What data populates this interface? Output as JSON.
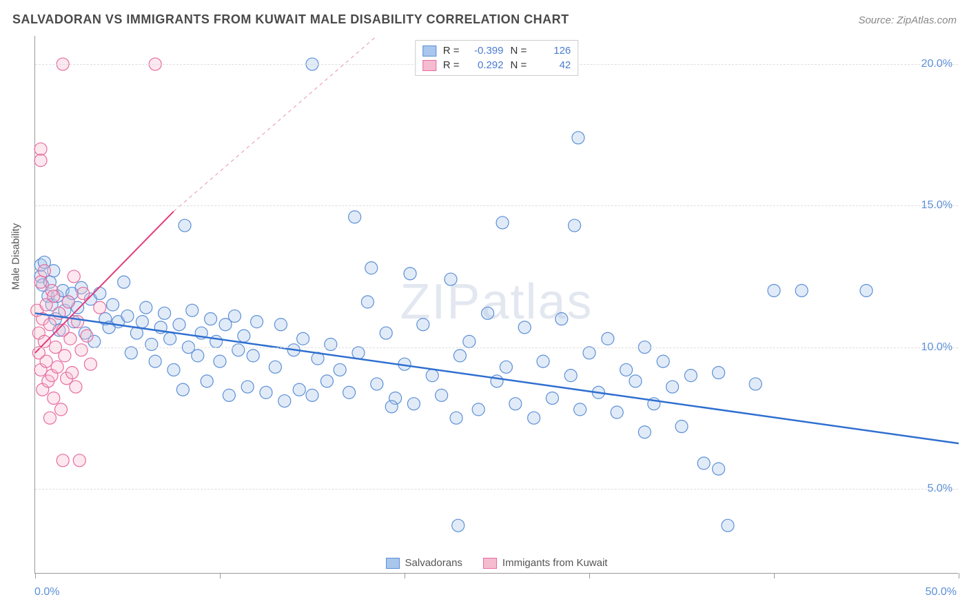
{
  "title": "SALVADORAN VS IMMIGRANTS FROM KUWAIT MALE DISABILITY CORRELATION CHART",
  "source": "Source: ZipAtlas.com",
  "watermark": "ZIPatlas",
  "y_axis_label": "Male Disability",
  "chart": {
    "type": "scatter",
    "xlim": [
      0,
      50
    ],
    "ylim": [
      2,
      21
    ],
    "xticks": [
      0,
      10,
      20,
      30,
      40,
      50
    ],
    "yticks": [
      5,
      10,
      15,
      20
    ],
    "ytick_labels": [
      "5.0%",
      "10.0%",
      "15.0%",
      "20.0%"
    ],
    "xmin_label": "0.0%",
    "xmax_label": "50.0%",
    "background_color": "#ffffff",
    "grid_color": "#dddddd",
    "point_radius": 9,
    "point_opacity": 0.35
  },
  "series": [
    {
      "name": "Salvadorans",
      "color_fill": "#a9c6ec",
      "color_stroke": "#5b8fd6",
      "R": "-0.399",
      "N": "126",
      "trend": {
        "x1": 0,
        "y1": 11.2,
        "x2": 50,
        "y2": 6.6,
        "color": "#2f6fd0",
        "width": 2.5,
        "dash": "none"
      },
      "points": [
        [
          0.3,
          12.9
        ],
        [
          0.3,
          12.5
        ],
        [
          0.4,
          12.2
        ],
        [
          0.5,
          13.0
        ],
        [
          0.7,
          11.8
        ],
        [
          0.8,
          12.3
        ],
        [
          0.9,
          11.5
        ],
        [
          1.0,
          12.7
        ],
        [
          1.1,
          11.0
        ],
        [
          1.2,
          11.8
        ],
        [
          1.3,
          10.6
        ],
        [
          1.5,
          12.0
        ],
        [
          1.6,
          11.3
        ],
        [
          1.8,
          11.6
        ],
        [
          2.0,
          11.9
        ],
        [
          2.1,
          10.9
        ],
        [
          2.3,
          11.4
        ],
        [
          2.5,
          12.1
        ],
        [
          2.7,
          10.5
        ],
        [
          3.0,
          11.7
        ],
        [
          3.2,
          10.2
        ],
        [
          3.5,
          11.9
        ],
        [
          3.8,
          11.0
        ],
        [
          4.0,
          10.7
        ],
        [
          4.2,
          11.5
        ],
        [
          4.5,
          10.9
        ],
        [
          4.8,
          12.3
        ],
        [
          5.0,
          11.1
        ],
        [
          5.2,
          9.8
        ],
        [
          5.5,
          10.5
        ],
        [
          5.8,
          10.9
        ],
        [
          6.0,
          11.4
        ],
        [
          6.3,
          10.1
        ],
        [
          6.5,
          9.5
        ],
        [
          6.8,
          10.7
        ],
        [
          7.0,
          11.2
        ],
        [
          7.3,
          10.3
        ],
        [
          7.5,
          9.2
        ],
        [
          7.8,
          10.8
        ],
        [
          8.0,
          8.5
        ],
        [
          8.1,
          14.3
        ],
        [
          8.3,
          10.0
        ],
        [
          8.5,
          11.3
        ],
        [
          8.8,
          9.7
        ],
        [
          9.0,
          10.5
        ],
        [
          9.3,
          8.8
        ],
        [
          9.5,
          11.0
        ],
        [
          9.8,
          10.2
        ],
        [
          10.0,
          9.5
        ],
        [
          10.3,
          10.8
        ],
        [
          10.5,
          8.3
        ],
        [
          10.8,
          11.1
        ],
        [
          11.0,
          9.9
        ],
        [
          11.3,
          10.4
        ],
        [
          11.5,
          8.6
        ],
        [
          11.8,
          9.7
        ],
        [
          12.0,
          10.9
        ],
        [
          12.5,
          8.4
        ],
        [
          13.0,
          9.3
        ],
        [
          13.3,
          10.8
        ],
        [
          13.5,
          8.1
        ],
        [
          14.0,
          9.9
        ],
        [
          14.3,
          8.5
        ],
        [
          14.5,
          10.3
        ],
        [
          15.0,
          8.3
        ],
        [
          15.0,
          20.0
        ],
        [
          15.3,
          9.6
        ],
        [
          15.8,
          8.8
        ],
        [
          16.0,
          10.1
        ],
        [
          16.5,
          9.2
        ],
        [
          17.0,
          8.4
        ],
        [
          17.3,
          14.6
        ],
        [
          17.5,
          9.8
        ],
        [
          18.0,
          11.6
        ],
        [
          18.2,
          12.8
        ],
        [
          18.5,
          8.7
        ],
        [
          19.0,
          10.5
        ],
        [
          19.5,
          8.2
        ],
        [
          20.0,
          9.4
        ],
        [
          20.3,
          12.6
        ],
        [
          20.5,
          8.0
        ],
        [
          21.0,
          10.8
        ],
        [
          21.5,
          9.0
        ],
        [
          22.0,
          8.3
        ],
        [
          22.5,
          12.4
        ],
        [
          22.8,
          7.5
        ],
        [
          22.9,
          3.7
        ],
        [
          23.0,
          9.7
        ],
        [
          23.5,
          10.2
        ],
        [
          24.0,
          7.8
        ],
        [
          24.5,
          11.2
        ],
        [
          25.0,
          8.8
        ],
        [
          25.3,
          14.4
        ],
        [
          25.5,
          9.3
        ],
        [
          26.0,
          8.0
        ],
        [
          26.5,
          10.7
        ],
        [
          27.0,
          7.5
        ],
        [
          27.5,
          9.5
        ],
        [
          28.0,
          8.2
        ],
        [
          28.5,
          11.0
        ],
        [
          29.0,
          9.0
        ],
        [
          29.2,
          14.3
        ],
        [
          29.4,
          17.4
        ],
        [
          29.5,
          7.8
        ],
        [
          30.0,
          9.8
        ],
        [
          30.5,
          8.4
        ],
        [
          31.0,
          10.3
        ],
        [
          31.5,
          7.7
        ],
        [
          32.0,
          9.2
        ],
        [
          32.5,
          8.8
        ],
        [
          33.0,
          10.0
        ],
        [
          33.5,
          8.0
        ],
        [
          34.0,
          9.5
        ],
        [
          34.5,
          8.6
        ],
        [
          35.0,
          7.2
        ],
        [
          35.5,
          9.0
        ],
        [
          36.2,
          5.9
        ],
        [
          37.0,
          9.1
        ],
        [
          37.0,
          5.7
        ],
        [
          37.5,
          3.7
        ],
        [
          39.0,
          8.7
        ],
        [
          40.0,
          12.0
        ],
        [
          41.5,
          12.0
        ],
        [
          45.0,
          12.0
        ],
        [
          33.0,
          7.0
        ],
        [
          19.3,
          7.9
        ]
      ]
    },
    {
      "name": "Immigants from Kuwait",
      "color_fill": "#f5bccf",
      "color_stroke": "#e76ba0",
      "R": "0.292",
      "N": "42",
      "trend": {
        "x1": 0,
        "y1": 9.8,
        "x2": 7.5,
        "y2": 14.8,
        "color": "#e23b7a",
        "width": 2,
        "dash": "none"
      },
      "trend_ext": {
        "x1": 7.5,
        "y1": 14.8,
        "x2": 18.5,
        "y2": 21.0,
        "color": "#e98fb4",
        "width": 1,
        "dash": "5,5"
      },
      "points": [
        [
          0.1,
          11.3
        ],
        [
          0.2,
          10.5
        ],
        [
          0.2,
          9.8
        ],
        [
          0.3,
          12.3
        ],
        [
          0.3,
          9.2
        ],
        [
          0.4,
          11.0
        ],
        [
          0.4,
          8.5
        ],
        [
          0.5,
          10.2
        ],
        [
          0.5,
          12.7
        ],
        [
          0.6,
          9.5
        ],
        [
          0.6,
          11.5
        ],
        [
          0.7,
          8.8
        ],
        [
          0.8,
          10.8
        ],
        [
          0.8,
          7.5
        ],
        [
          0.9,
          12.0
        ],
        [
          0.9,
          9.0
        ],
        [
          1.0,
          11.8
        ],
        [
          1.0,
          8.2
        ],
        [
          1.1,
          10.0
        ],
        [
          1.2,
          9.3
        ],
        [
          1.3,
          11.2
        ],
        [
          1.4,
          7.8
        ],
        [
          1.5,
          10.6
        ],
        [
          1.5,
          6.0
        ],
        [
          1.6,
          9.7
        ],
        [
          1.7,
          8.9
        ],
        [
          1.8,
          11.6
        ],
        [
          1.9,
          10.3
        ],
        [
          2.0,
          9.1
        ],
        [
          2.1,
          12.5
        ],
        [
          2.2,
          8.6
        ],
        [
          2.3,
          10.9
        ],
        [
          2.4,
          6.0
        ],
        [
          2.5,
          9.9
        ],
        [
          2.6,
          11.9
        ],
        [
          2.8,
          10.4
        ],
        [
          3.0,
          9.4
        ],
        [
          0.3,
          17.0
        ],
        [
          0.3,
          16.6
        ],
        [
          1.5,
          20.0
        ],
        [
          6.5,
          20.0
        ],
        [
          3.5,
          11.4
        ]
      ]
    }
  ],
  "legend_top_labels": {
    "R": "R =",
    "N": "N ="
  },
  "legend_bottom": [
    "Salvadorans",
    "Immigants from Kuwait"
  ]
}
